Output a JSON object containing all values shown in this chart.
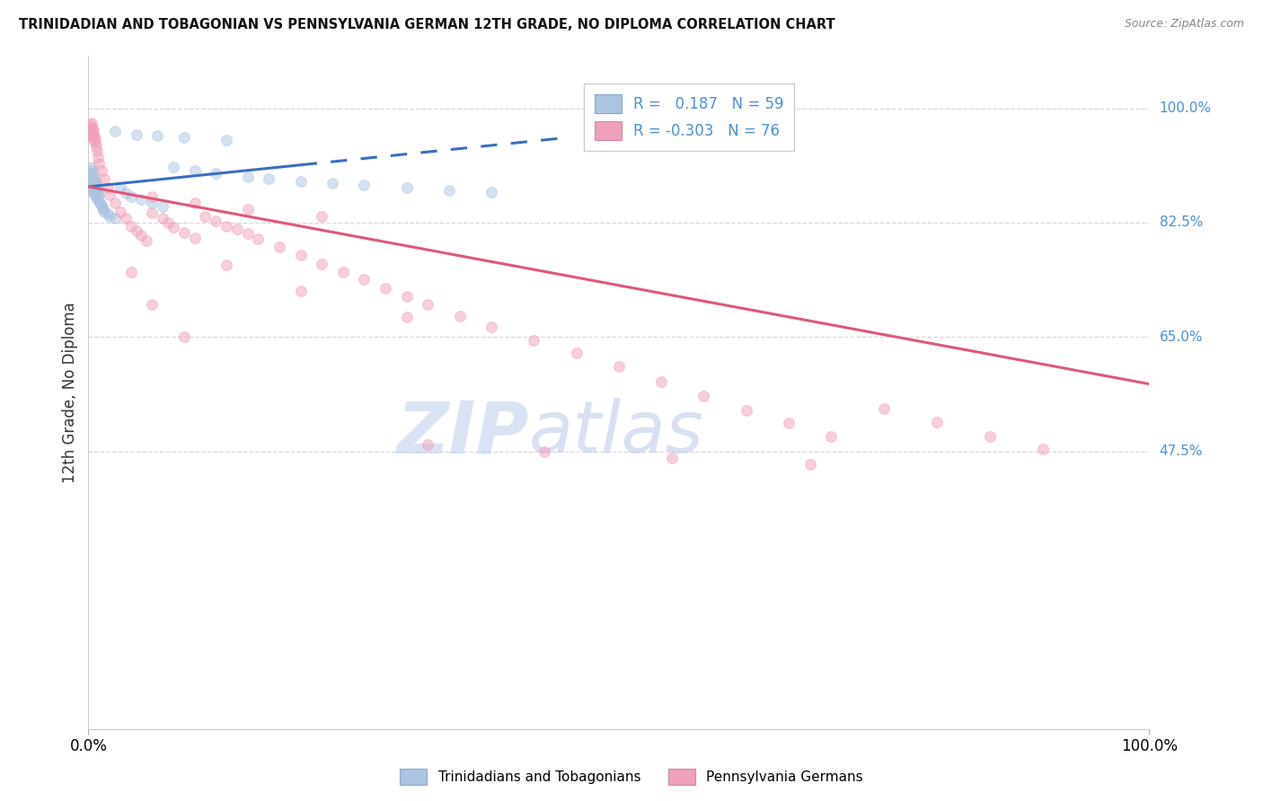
{
  "title": "TRINIDADIAN AND TOBAGONIAN VS PENNSYLVANIA GERMAN 12TH GRADE, NO DIPLOMA CORRELATION CHART",
  "source": "Source: ZipAtlas.com",
  "ylabel": "12th Grade, No Diploma",
  "blue_label": "Trinidadians and Tobagonians",
  "pink_label": "Pennsylvania Germans",
  "blue_R": "0.187",
  "blue_N": "59",
  "pink_R": "-0.303",
  "pink_N": "76",
  "blue_color": "#aac4e2",
  "blue_line_color": "#3a6fc0",
  "pink_color": "#f0a0b8",
  "pink_line_color": "#e05878",
  "watermark_zip": "ZIP",
  "watermark_atlas": "atlas",
  "watermark_color_zip": "#ccd9ef",
  "watermark_color_atlas": "#c8d8ec",
  "grid_color": "#d8d8d8",
  "title_color": "#111111",
  "source_color": "#888888",
  "right_tick_color": "#4a90d9",
  "ytick_vals": [
    1.0,
    0.825,
    0.65,
    0.475
  ],
  "ytick_labels": [
    "100.0%",
    "82.5%",
    "65.0%",
    "47.5%"
  ],
  "xlim": [
    0.0,
    1.0
  ],
  "ylim": [
    0.05,
    1.08
  ],
  "blue_trend_x0": 0.0,
  "blue_trend_x1": 0.45,
  "blue_trend_y0": 0.88,
  "blue_trend_y1": 0.955,
  "pink_trend_x0": 0.0,
  "pink_trend_x1": 1.0,
  "pink_trend_y0": 0.88,
  "pink_trend_y1": 0.578,
  "blue_x": [
    0.001,
    0.001,
    0.002,
    0.002,
    0.002,
    0.003,
    0.003,
    0.003,
    0.003,
    0.004,
    0.004,
    0.004,
    0.005,
    0.005,
    0.005,
    0.005,
    0.006,
    0.006,
    0.006,
    0.007,
    0.007,
    0.007,
    0.008,
    0.008,
    0.008,
    0.009,
    0.009,
    0.01,
    0.01,
    0.011,
    0.012,
    0.013,
    0.014,
    0.015,
    0.018,
    0.02,
    0.025,
    0.03,
    0.035,
    0.04,
    0.05,
    0.06,
    0.07,
    0.08,
    0.1,
    0.12,
    0.15,
    0.17,
    0.2,
    0.23,
    0.26,
    0.3,
    0.34,
    0.38,
    0.025,
    0.045,
    0.065,
    0.09,
    0.13
  ],
  "blue_y": [
    0.888,
    0.9,
    0.882,
    0.895,
    0.905,
    0.878,
    0.888,
    0.898,
    0.91,
    0.875,
    0.882,
    0.892,
    0.87,
    0.878,
    0.888,
    0.9,
    0.868,
    0.878,
    0.89,
    0.865,
    0.875,
    0.885,
    0.862,
    0.872,
    0.882,
    0.86,
    0.87,
    0.858,
    0.868,
    0.855,
    0.852,
    0.848,
    0.845,
    0.842,
    0.838,
    0.835,
    0.832,
    0.878,
    0.87,
    0.865,
    0.86,
    0.855,
    0.85,
    0.91,
    0.905,
    0.9,
    0.895,
    0.892,
    0.888,
    0.885,
    0.882,
    0.878,
    0.875,
    0.872,
    0.965,
    0.96,
    0.958,
    0.955,
    0.952
  ],
  "pink_x": [
    0.001,
    0.002,
    0.002,
    0.003,
    0.003,
    0.003,
    0.004,
    0.004,
    0.005,
    0.005,
    0.005,
    0.006,
    0.006,
    0.007,
    0.008,
    0.009,
    0.01,
    0.012,
    0.015,
    0.018,
    0.02,
    0.025,
    0.03,
    0.035,
    0.04,
    0.045,
    0.05,
    0.055,
    0.06,
    0.07,
    0.075,
    0.08,
    0.09,
    0.1,
    0.11,
    0.12,
    0.13,
    0.14,
    0.15,
    0.16,
    0.18,
    0.2,
    0.22,
    0.24,
    0.26,
    0.28,
    0.3,
    0.32,
    0.35,
    0.38,
    0.42,
    0.46,
    0.5,
    0.54,
    0.58,
    0.62,
    0.66,
    0.7,
    0.75,
    0.8,
    0.85,
    0.9,
    0.04,
    0.06,
    0.09,
    0.13,
    0.2,
    0.3,
    0.06,
    0.1,
    0.15,
    0.22,
    0.32,
    0.43,
    0.55,
    0.68
  ],
  "pink_y": [
    0.96,
    0.968,
    0.975,
    0.962,
    0.97,
    0.978,
    0.958,
    0.965,
    0.952,
    0.96,
    0.968,
    0.948,
    0.956,
    0.942,
    0.935,
    0.925,
    0.915,
    0.905,
    0.892,
    0.878,
    0.868,
    0.855,
    0.842,
    0.832,
    0.82,
    0.812,
    0.805,
    0.798,
    0.84,
    0.832,
    0.825,
    0.818,
    0.81,
    0.802,
    0.835,
    0.828,
    0.82,
    0.815,
    0.808,
    0.8,
    0.788,
    0.775,
    0.762,
    0.75,
    0.738,
    0.725,
    0.712,
    0.7,
    0.682,
    0.665,
    0.645,
    0.625,
    0.605,
    0.582,
    0.56,
    0.538,
    0.518,
    0.498,
    0.54,
    0.52,
    0.498,
    0.478,
    0.75,
    0.7,
    0.65,
    0.76,
    0.72,
    0.68,
    0.865,
    0.855,
    0.845,
    0.835,
    0.485,
    0.475,
    0.465,
    0.455
  ],
  "scatter_size": 72,
  "scatter_alpha": 0.5,
  "scatter_lw": 0.8
}
